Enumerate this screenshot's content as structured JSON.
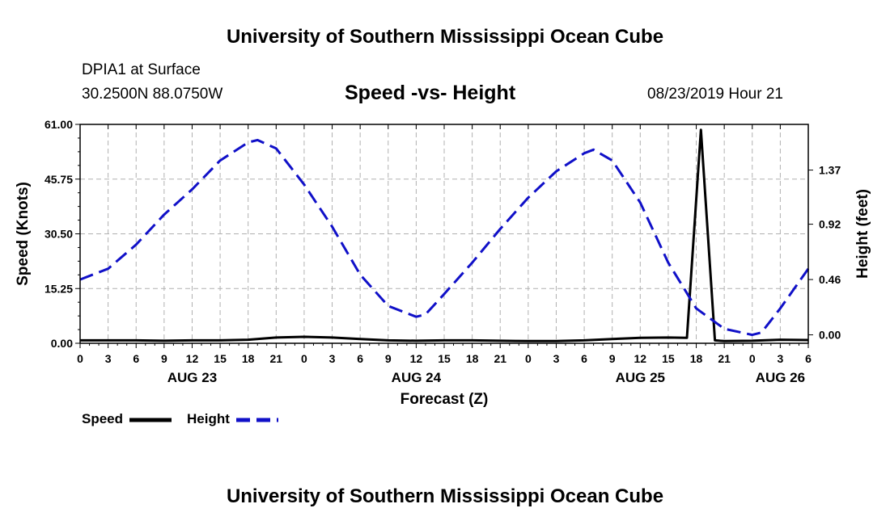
{
  "header": {
    "title": "University of Southern Mississippi Ocean Cube",
    "station": "DPIA1 at Surface",
    "coords": "30.2500N 88.0750W",
    "chart_title": "Speed -vs- Height",
    "datetime": "08/23/2019 Hour 21"
  },
  "footer": {
    "title": "University of Southern Mississippi Ocean Cube"
  },
  "legend": {
    "speed_label": "Speed",
    "height_label": "Height"
  },
  "colors": {
    "speed": "#000000",
    "height": "#1010c8",
    "grid": "#b0b0b0"
  },
  "chart_data": {
    "type": "line",
    "title": "Speed -vs- Height",
    "xlabel": "Forecast (Z)",
    "ylabel": "Speed (Knots)",
    "y2label": "Height (feet)",
    "xlim": [
      0,
      78
    ],
    "ylim": [
      0,
      61
    ],
    "y2lim": [
      -0.07,
      1.75
    ],
    "x_ticks": [
      0,
      3,
      6,
      9,
      12,
      15,
      18,
      21,
      24,
      27,
      30,
      33,
      36,
      39,
      42,
      45,
      48,
      51,
      54,
      57,
      60,
      63,
      66,
      69,
      72,
      75,
      78
    ],
    "x_tick_labels": [
      "0",
      "3",
      "6",
      "9",
      "12",
      "15",
      "18",
      "21",
      "0",
      "3",
      "6",
      "9",
      "12",
      "15",
      "18",
      "21",
      "0",
      "3",
      "6",
      "9",
      "12",
      "15",
      "18",
      "21",
      "0",
      "3",
      "6"
    ],
    "date_labels": [
      {
        "x": 12,
        "label": "AUG 23"
      },
      {
        "x": 36,
        "label": "AUG 24"
      },
      {
        "x": 60,
        "label": "AUG 25"
      },
      {
        "x": 75,
        "label": "AUG 26"
      }
    ],
    "y_ticks": [
      0,
      15.25,
      30.5,
      45.75,
      61
    ],
    "y_tick_labels": [
      "0.00",
      "15.25",
      "30.50",
      "45.75",
      "61.00"
    ],
    "y2_ticks": [
      0,
      0.46,
      0.92,
      1.37
    ],
    "y2_tick_labels": [
      "0.00",
      "0.46",
      "0.92",
      "1.37"
    ],
    "grid": true,
    "legend_position": "bottom-left",
    "series": [
      {
        "name": "Speed",
        "axis": "left",
        "style": "solid",
        "x": [
          0,
          3,
          6,
          9,
          12,
          15,
          18,
          21,
          24,
          27,
          30,
          33,
          36,
          39,
          42,
          45,
          48,
          51,
          54,
          57,
          60,
          63,
          65,
          66.5,
          68,
          69,
          72,
          75,
          78
        ],
        "y": [
          0.8,
          0.8,
          0.8,
          0.7,
          0.8,
          0.8,
          1.0,
          1.6,
          1.8,
          1.6,
          1.2,
          0.8,
          0.7,
          0.8,
          0.8,
          0.7,
          0.6,
          0.6,
          0.8,
          1.2,
          1.5,
          1.6,
          1.5,
          59.5,
          0.8,
          0.6,
          0.7,
          1.0,
          0.9
        ]
      },
      {
        "name": "Height",
        "axis": "right",
        "style": "dashed",
        "x": [
          0,
          3,
          6,
          9,
          12,
          15,
          18,
          19,
          21,
          24,
          27,
          30,
          33,
          36,
          37,
          39,
          42,
          45,
          48,
          51,
          54,
          55,
          57,
          60,
          63,
          66,
          69,
          72,
          73,
          75,
          78
        ],
        "y": [
          0.46,
          0.55,
          0.75,
          1.0,
          1.21,
          1.45,
          1.6,
          1.62,
          1.55,
          1.25,
          0.9,
          0.5,
          0.24,
          0.15,
          0.17,
          0.34,
          0.6,
          0.88,
          1.14,
          1.36,
          1.51,
          1.54,
          1.45,
          1.1,
          0.6,
          0.22,
          0.05,
          0.0,
          0.02,
          0.22,
          0.55
        ]
      }
    ]
  }
}
